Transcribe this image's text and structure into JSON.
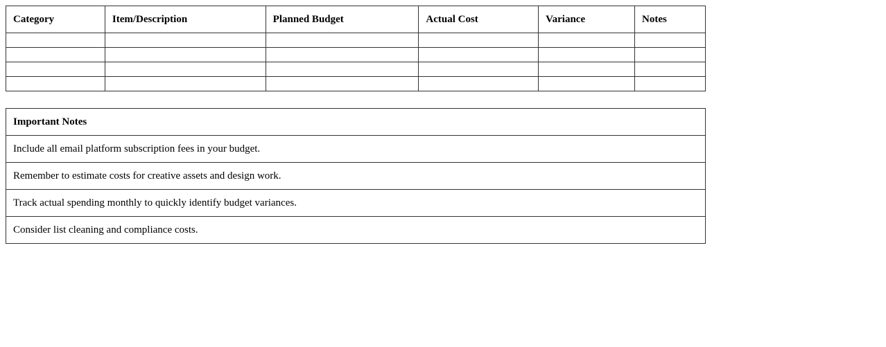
{
  "budget_table": {
    "headers": [
      "Category",
      "Item/Description",
      "Planned Budget",
      "Actual Cost",
      "Variance",
      "Notes"
    ],
    "rows": [
      [
        "",
        "",
        "",
        "",
        "",
        ""
      ],
      [
        "",
        "",
        "",
        "",
        "",
        ""
      ],
      [
        "",
        "",
        "",
        "",
        "",
        ""
      ],
      [
        "",
        "",
        "",
        "",
        "",
        ""
      ]
    ]
  },
  "notes_table": {
    "title": "Important Notes",
    "items": [
      "Include all email platform subscription fees in your budget.",
      "Remember to estimate costs for creative assets and design work.",
      "Track actual spending monthly to quickly identify budget variances.",
      "Consider list cleaning and compliance costs."
    ]
  }
}
